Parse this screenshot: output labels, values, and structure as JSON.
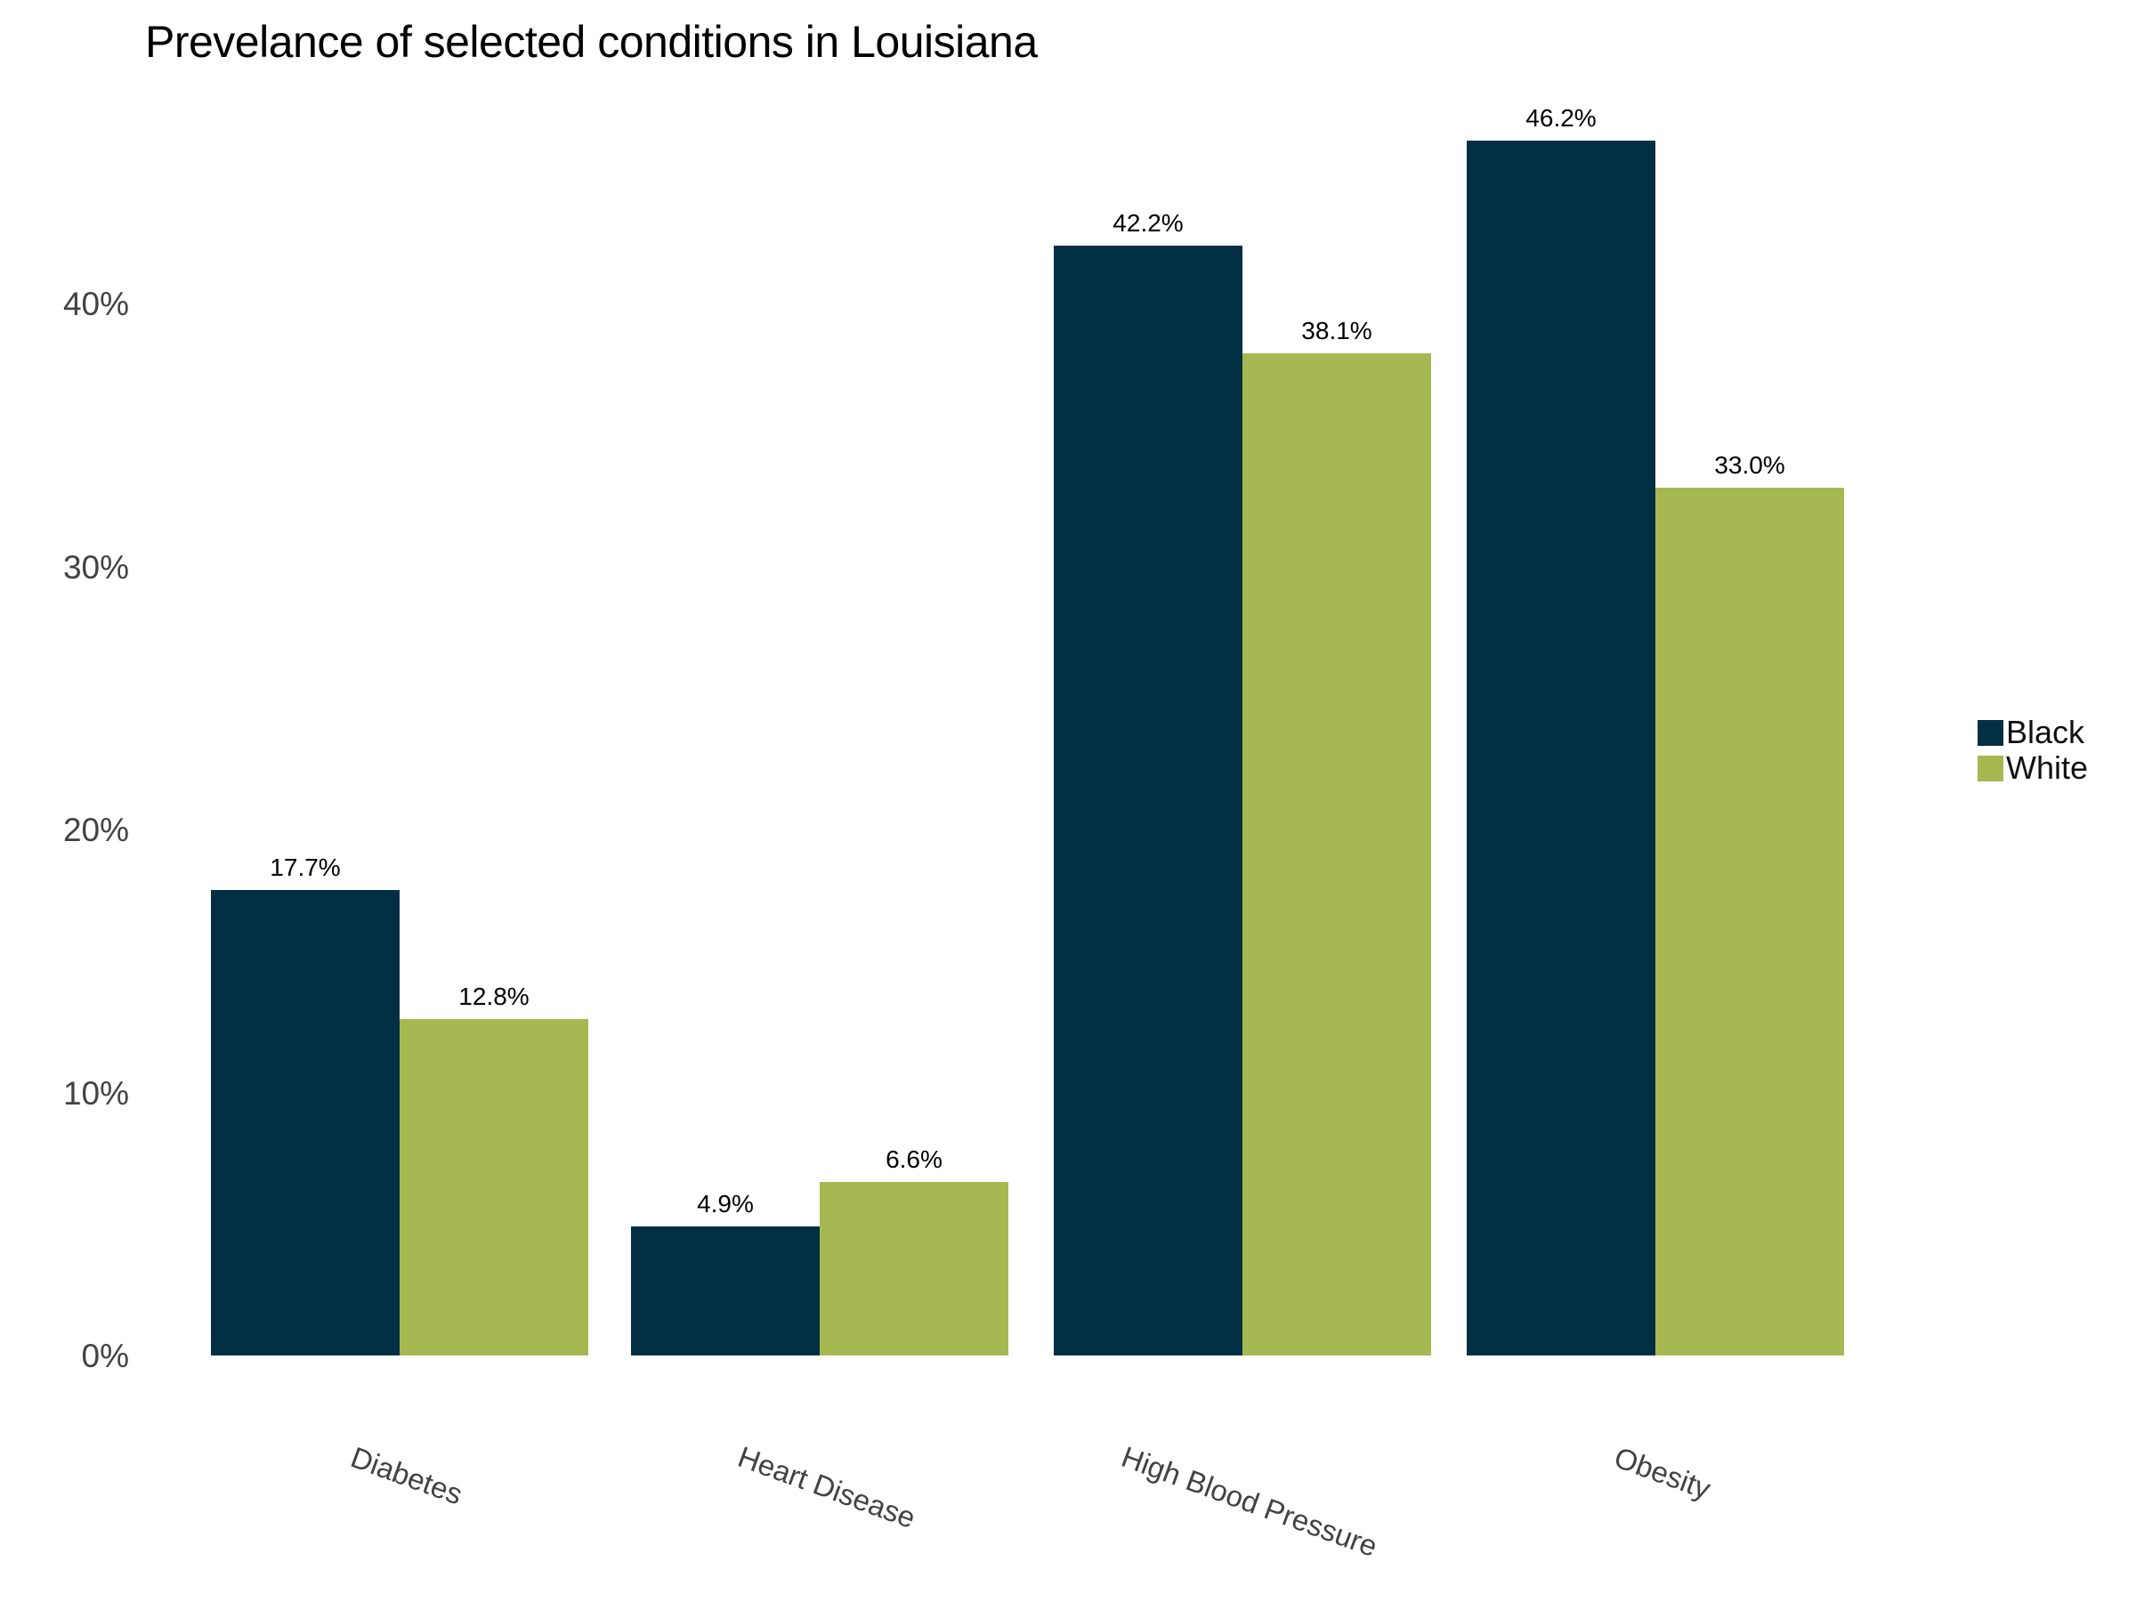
{
  "title": "Prevelance of selected conditions in Louisiana",
  "colors": {
    "series_black": "#032f45",
    "series_white": "#a6b851",
    "tick_text": "#424242",
    "title_text": "#000000",
    "value_text": "#000000",
    "background": "#ffffff"
  },
  "legend": {
    "items": [
      {
        "label": "Black",
        "color": "#032f45"
      },
      {
        "label": "White",
        "color": "#a6b851"
      }
    ]
  },
  "chart_data": {
    "type": "bar",
    "title": "Prevelance of selected conditions in Louisiana",
    "categories": [
      "Diabetes",
      "Heart Disease",
      "High Blood Pressure",
      "Obesity"
    ],
    "series": [
      {
        "name": "Black",
        "color": "#032f45",
        "values": [
          17.7,
          4.9,
          42.2,
          46.2
        ],
        "value_labels": [
          "17.7%",
          "4.9%",
          "42.2%",
          "46.2%"
        ]
      },
      {
        "name": "White",
        "color": "#a6b851",
        "values": [
          12.8,
          6.6,
          38.1,
          33.0
        ],
        "value_labels": [
          "12.8%",
          "6.6%",
          "38.1%",
          "33.0%"
        ]
      }
    ],
    "xlabel": "",
    "ylabel": "",
    "yticks": [
      {
        "value": 0,
        "label": "0%"
      },
      {
        "value": 10,
        "label": "10%"
      },
      {
        "value": 20,
        "label": "20%"
      },
      {
        "value": 30,
        "label": "30%"
      },
      {
        "value": 40,
        "label": "40%"
      }
    ],
    "ylim": [
      0,
      50
    ],
    "grid": false,
    "axis_lines": false,
    "legend_position": "right",
    "x_tick_rotation_deg": 20,
    "bar_value_labels_shown": true
  }
}
